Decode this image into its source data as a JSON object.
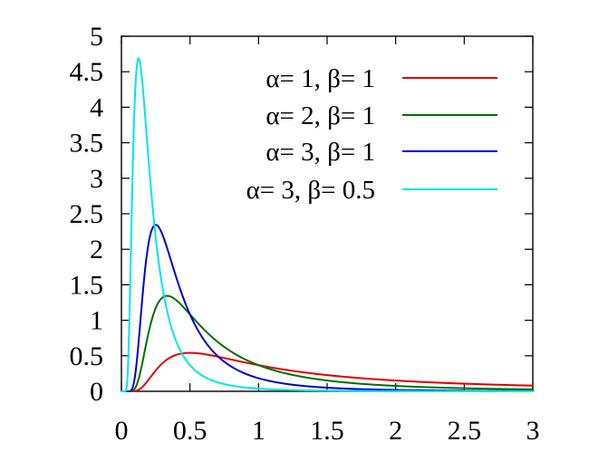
{
  "chart_data": {
    "type": "line",
    "xlim": [
      0,
      3
    ],
    "ylim": [
      0,
      5
    ],
    "x_ticks": [
      0,
      0.5,
      1,
      1.5,
      2,
      2.5,
      3
    ],
    "y_ticks": [
      0,
      0.5,
      1,
      1.5,
      2,
      2.5,
      3,
      3.5,
      4,
      4.5,
      5
    ],
    "x_tick_labels": [
      "0",
      "0.5",
      "1",
      "1.5",
      "2",
      "2.5",
      "3"
    ],
    "y_tick_labels": [
      "0",
      "0.5",
      "1",
      "1.5",
      "2",
      "2.5",
      "3",
      "3.5",
      "4",
      "4.5",
      "5"
    ],
    "grid": false,
    "legend_position": "top-right",
    "series": [
      {
        "name": "α= 1, β= 1",
        "alpha": 1,
        "beta": 1,
        "color": "#e00000",
        "peak": {
          "x": 0.5,
          "y": 0.54
        }
      },
      {
        "name": "α= 2, β= 1",
        "alpha": 2,
        "beta": 1,
        "color": "#007000",
        "peak": {
          "x": 0.333,
          "y": 1.35
        }
      },
      {
        "name": "α= 3, β= 1",
        "alpha": 3,
        "beta": 1,
        "color": "#0000d0",
        "peak": {
          "x": 0.25,
          "y": 2.35
        }
      },
      {
        "name": "α= 3, β= 0.5",
        "alpha": 3,
        "beta": 0.5,
        "color": "#00e6e6",
        "peak": {
          "x": 0.125,
          "y": 4.69
        }
      }
    ]
  }
}
